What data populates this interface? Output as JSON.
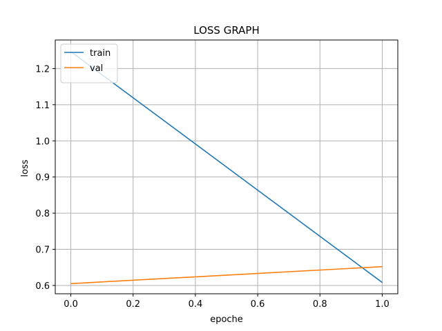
{
  "chart_data": {
    "type": "line",
    "title": "LOSS GRAPH",
    "xlabel": "epoche",
    "ylabel": "loss",
    "xlim": [
      -0.05,
      1.05
    ],
    "ylim": [
      0.577,
      1.279
    ],
    "xticks": [
      0.0,
      0.2,
      0.4,
      0.6,
      0.8,
      1.0
    ],
    "xtick_labels": [
      "0.0",
      "0.2",
      "0.4",
      "0.6",
      "0.8",
      "1.0"
    ],
    "yticks": [
      0.6,
      0.7,
      0.8,
      0.9,
      1.0,
      1.1,
      1.2
    ],
    "ytick_labels": [
      "0.6",
      "0.7",
      "0.8",
      "0.9",
      "1.0",
      "1.1",
      "1.2"
    ],
    "grid": true,
    "legend_position": "top-left",
    "series": [
      {
        "name": "train",
        "color": "#1f77b4",
        "x": [
          0,
          1
        ],
        "y": [
          1.247,
          0.608
        ]
      },
      {
        "name": "val",
        "color": "#ff7f0e",
        "x": [
          0,
          1
        ],
        "y": [
          0.605,
          0.652
        ]
      }
    ]
  }
}
